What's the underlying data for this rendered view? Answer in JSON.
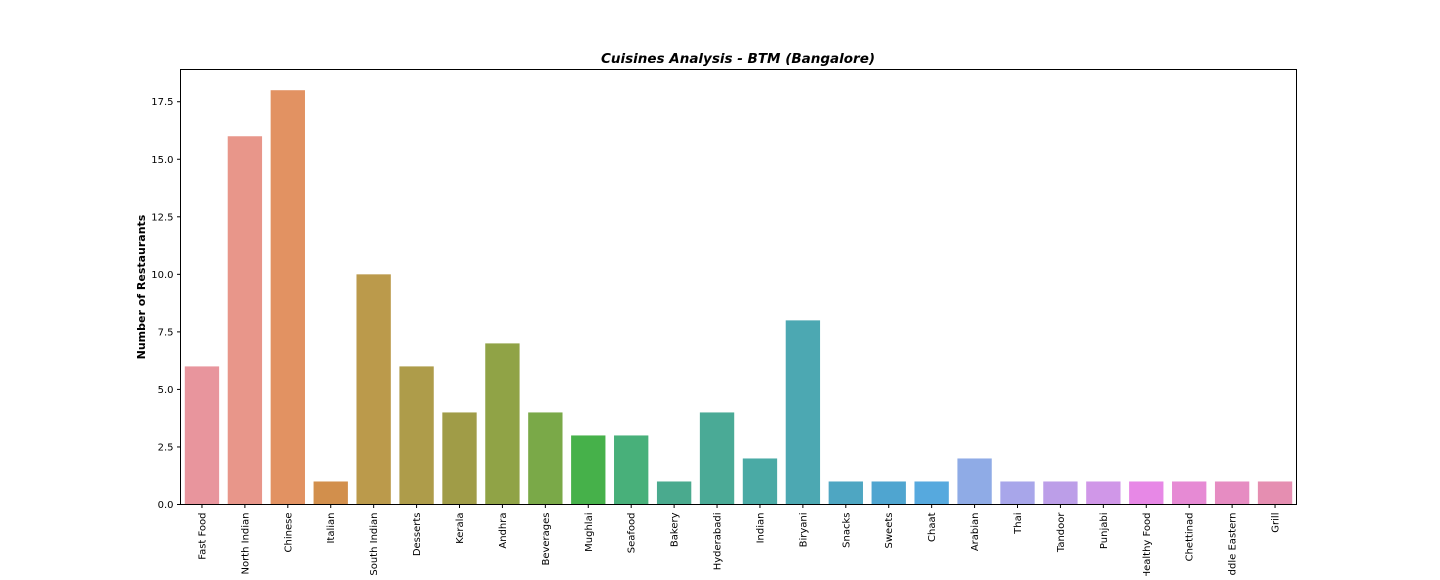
{
  "chart_data": {
    "type": "bar",
    "title": "Cuisines Analysis - BTM (Bangalore)",
    "xlabel": "",
    "ylabel": "Number of Restaurants",
    "ylim": [
      0,
      18.9
    ],
    "yticks": [
      0.0,
      2.5,
      5.0,
      7.5,
      10.0,
      12.5,
      15.0,
      17.5
    ],
    "ytick_labels": [
      "0.0",
      "2.5",
      "5.0",
      "7.5",
      "10.0",
      "12.5",
      "15.0",
      "17.5"
    ],
    "grid": false,
    "categories": [
      "Fast Food",
      "North Indian",
      "Chinese",
      "Italian",
      "South Indian",
      "Desserts",
      "Kerala",
      "Andhra",
      "Beverages",
      "Mughlai",
      "Seafood",
      "Bakery",
      "Hyderabadi",
      "Indian",
      "Biryani",
      "Snacks",
      "Sweets",
      "Chaat",
      "Arabian",
      "Thai",
      "Tandoor",
      "Punjabi",
      "Healthy Food",
      "Chettinad",
      "Middle Eastern",
      "Grill"
    ],
    "values": [
      6,
      16,
      18,
      1,
      10,
      6,
      4,
      7,
      4,
      3,
      3,
      1,
      4,
      2,
      8,
      1,
      1,
      1,
      2,
      1,
      1,
      1,
      1,
      1,
      1,
      1
    ],
    "colors": [
      "#e8959d",
      "#e8968a",
      "#e29262",
      "#d28f4c",
      "#bb9a4b",
      "#ae9c4a",
      "#a09c47",
      "#90a346",
      "#7aa948",
      "#46b14a",
      "#48b07a",
      "#4aaa8e",
      "#4aaa96",
      "#4aaaa5",
      "#4ca8b2",
      "#4ea6c2",
      "#4fa5d0",
      "#56a9de",
      "#8fabe6",
      "#a8a6ea",
      "#bc9ee8",
      "#d097e8",
      "#e788e6",
      "#e68ad4",
      "#e68cc2",
      "#e58eb1"
    ]
  }
}
